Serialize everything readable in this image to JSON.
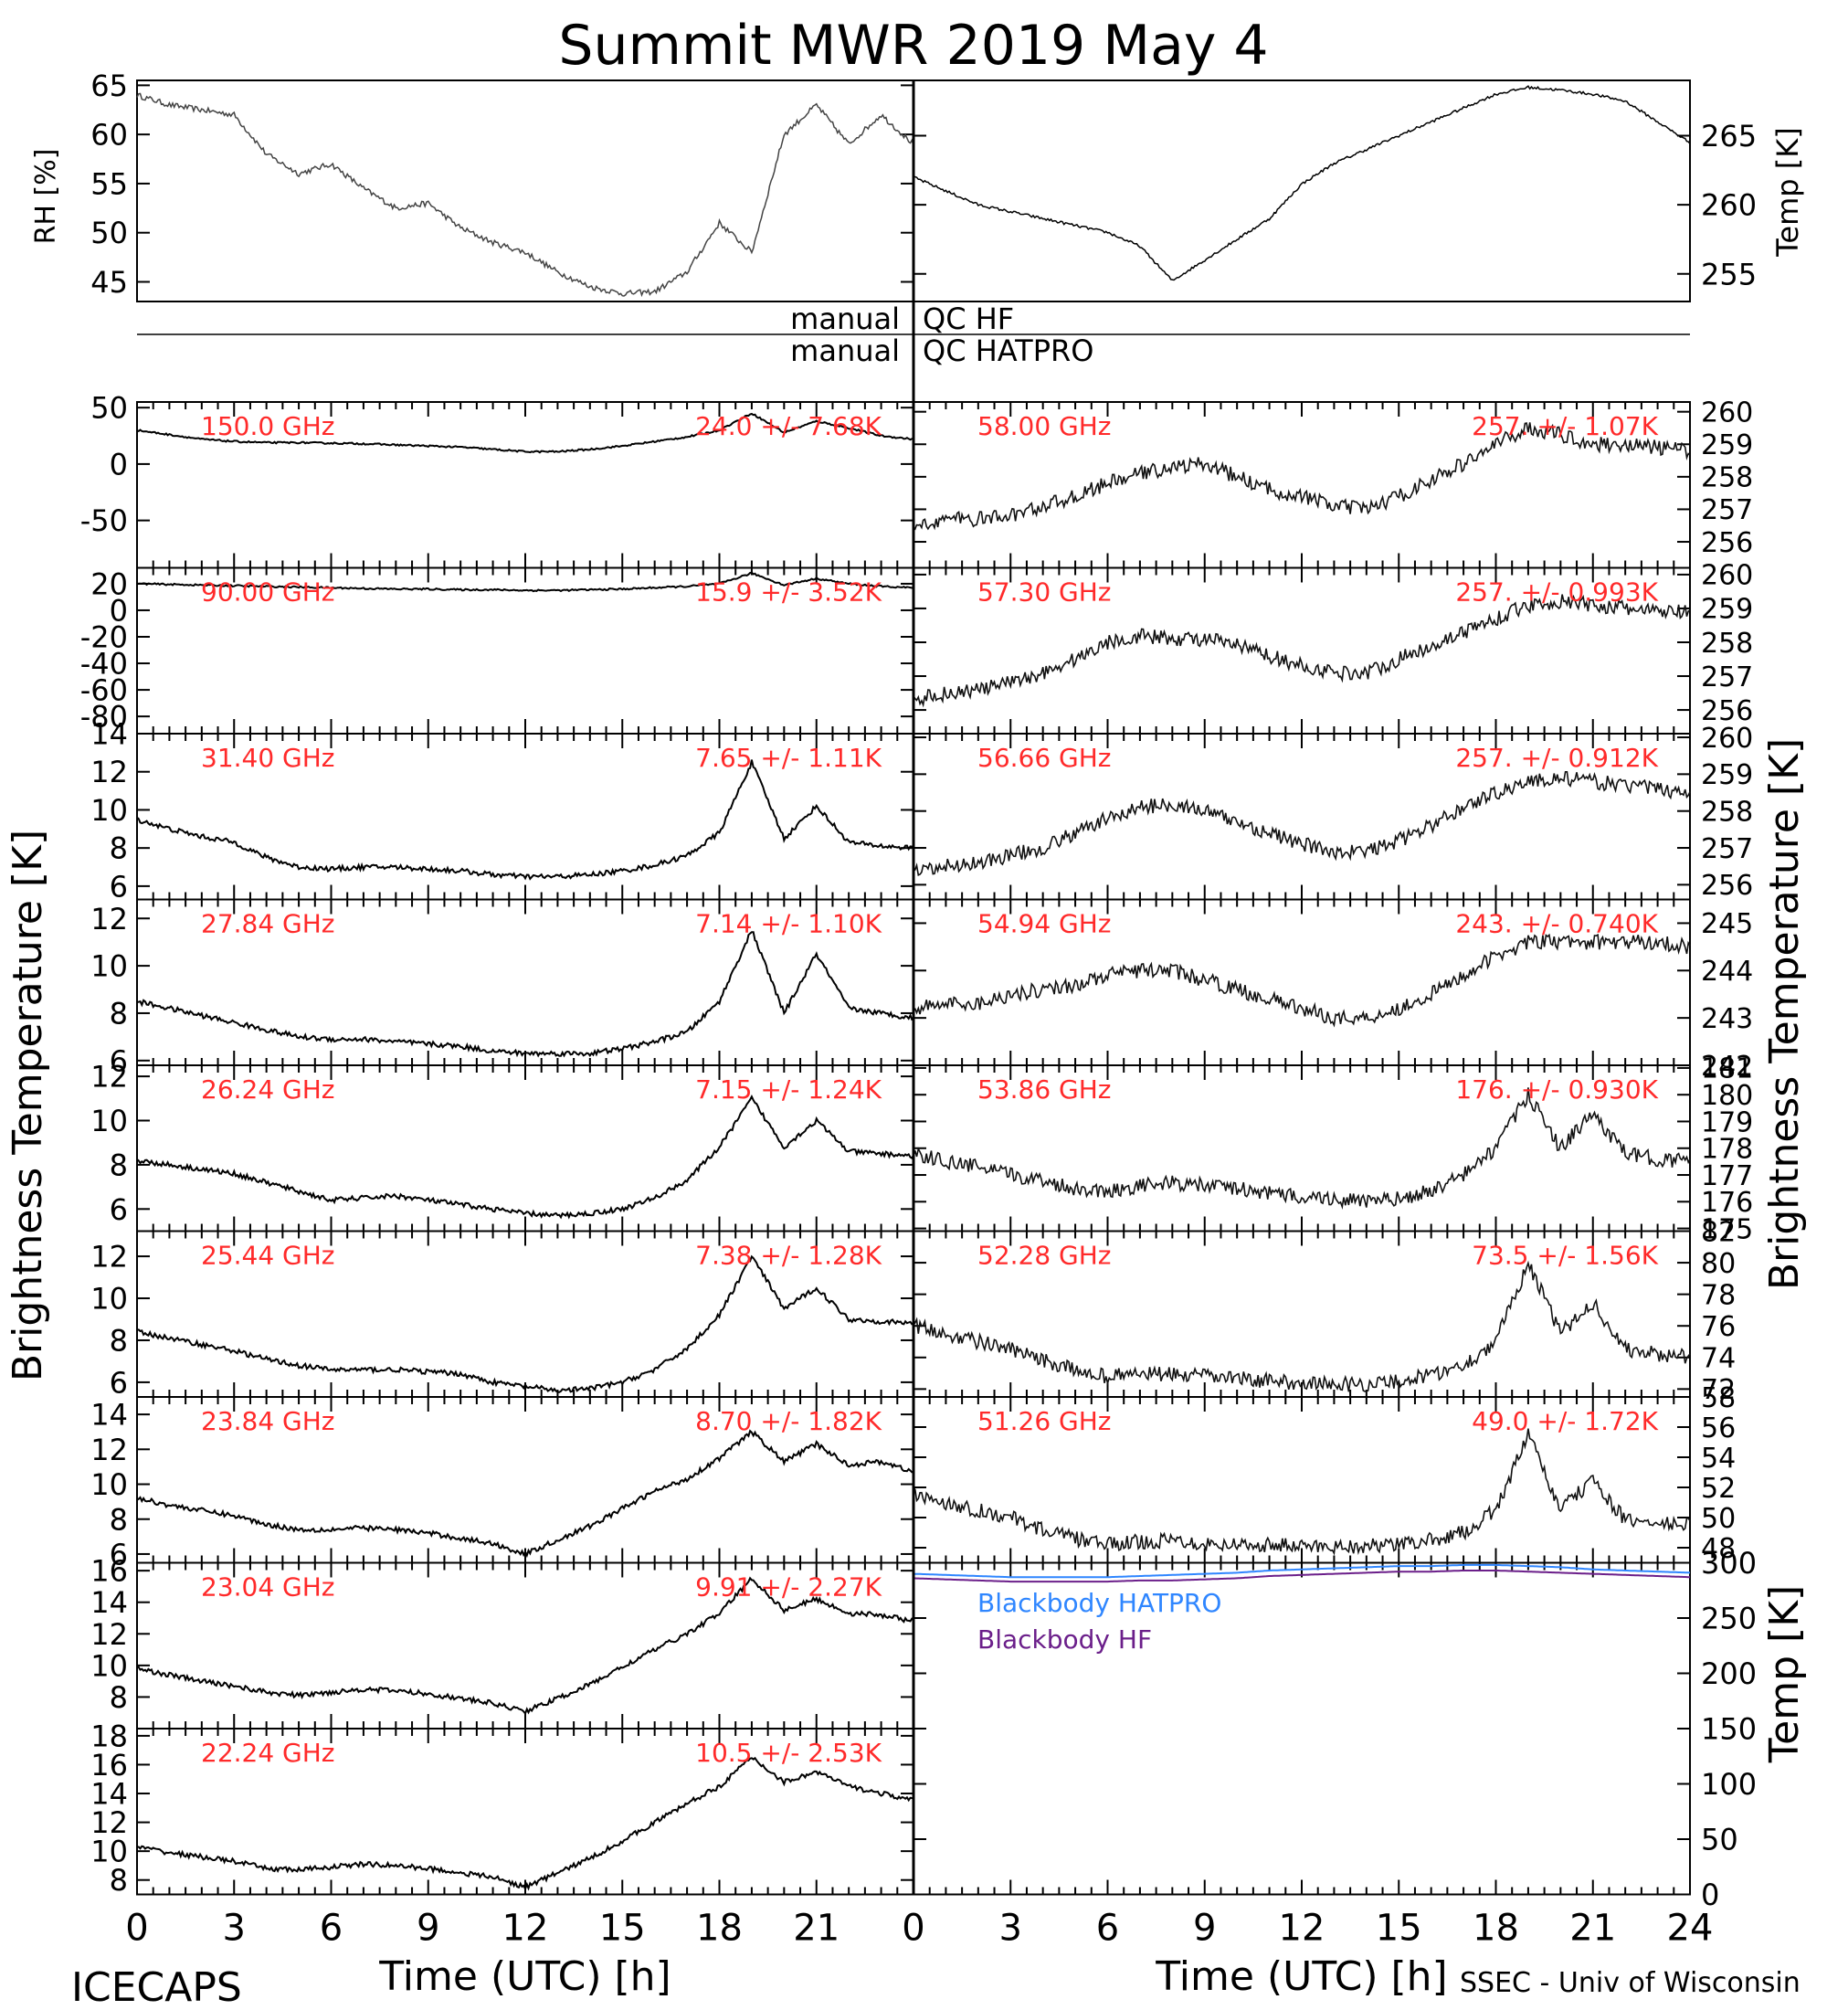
{
  "title": "Summit MWR 2019 May  4",
  "footer": {
    "left": "ICECAPS",
    "right": "SSEC - Univ of Wisconsin"
  },
  "qc": {
    "hf": "QC HF",
    "hatpro": "QC HATPRO",
    "manual": "manual"
  },
  "axis_labels": {
    "x": "Time (UTC) [h]",
    "y_left": "Brightness Temperature [K]",
    "y_right": "Brightness Temperature [K]",
    "rh": "RH [%]",
    "temp_top": "Temp [K]",
    "temp_bb": "Temp [K]"
  },
  "colors": {
    "stat_text": "#ff2a2a",
    "hatpro": "#2f86ff",
    "hf": "#6b1f8a",
    "data": "#000000"
  },
  "chart_data": {
    "type": "line",
    "x_range": [
      0,
      24
    ],
    "x_ticks": [
      0,
      3,
      6,
      9,
      12,
      15,
      18,
      21,
      24
    ],
    "met": {
      "x": [
        0,
        1,
        2,
        3,
        4,
        5,
        6,
        7,
        8,
        9,
        10,
        11,
        12,
        13,
        14,
        15,
        16,
        17,
        18,
        19,
        20,
        21,
        22,
        23,
        24
      ],
      "rh": {
        "ylim": [
          43,
          65.5
        ],
        "ticks": [
          45,
          50,
          55,
          60,
          65
        ],
        "values": [
          64,
          63,
          62.5,
          62,
          58,
          56,
          57,
          54.5,
          52.5,
          53,
          50.5,
          49,
          48,
          46,
          44.5,
          43.8,
          44,
          46,
          51,
          48,
          60,
          63,
          59,
          62,
          59
        ]
      },
      "temp": {
        "ylim": [
          253,
          269
        ],
        "ticks": [
          255,
          260,
          265
        ],
        "values": [
          262,
          261,
          260,
          259.5,
          259,
          258.5,
          258,
          257,
          254.5,
          256,
          257.5,
          259,
          261.5,
          263,
          264,
          265,
          266,
          267,
          268,
          268.5,
          268.3,
          268,
          267.5,
          266,
          264.5
        ]
      }
    },
    "left_panels": [
      {
        "freq": "150.0 GHz",
        "stat": "24.0 +/- 7.68K",
        "ylim": [
          -92,
          55
        ],
        "ticks": [
          50,
          0,
          -50
        ],
        "values": [
          30,
          26,
          22,
          20,
          19,
          19,
          18.5,
          18,
          17,
          16,
          15,
          13,
          11,
          11,
          13,
          16,
          20,
          24,
          30,
          45,
          28,
          38,
          32,
          25,
          22
        ]
      },
      {
        "freq": "90.00 GHz",
        "stat": "15.9 +/- 3.52K",
        "ylim": [
          -93,
          32
        ],
        "ticks": [
          20,
          0,
          -20,
          -40,
          -60,
          -80
        ],
        "values": [
          20,
          19.5,
          19,
          18.5,
          18,
          17.5,
          17,
          16.5,
          16,
          16,
          15.5,
          15.5,
          15,
          15,
          15.5,
          16,
          17,
          18,
          20,
          28,
          19,
          24,
          20,
          18,
          17
        ]
      },
      {
        "freq": "31.40 GHz",
        "stat": "7.65 +/- 1.11K",
        "ylim": [
          5.3,
          14
        ],
        "ticks": [
          6,
          8,
          10,
          12,
          14
        ],
        "values": [
          9.5,
          9,
          8.6,
          8.3,
          7.5,
          7.0,
          6.9,
          7.0,
          7.0,
          6.9,
          6.8,
          6.6,
          6.5,
          6.5,
          6.6,
          6.8,
          7.1,
          7.6,
          8.8,
          12.5,
          8.5,
          10.2,
          8.3,
          8.1,
          8.0
        ]
      },
      {
        "freq": "27.84 GHz",
        "stat": "7.14 +/- 1.10K",
        "ylim": [
          5.8,
          12.8
        ],
        "ticks": [
          6,
          8,
          10,
          12
        ],
        "values": [
          8.5,
          8.2,
          7.9,
          7.6,
          7.3,
          7.0,
          6.9,
          6.9,
          6.8,
          6.7,
          6.6,
          6.4,
          6.3,
          6.3,
          6.3,
          6.5,
          6.8,
          7.2,
          8.5,
          11.5,
          8.0,
          10.5,
          8.2,
          8.0,
          7.8
        ]
      },
      {
        "freq": "26.24 GHz",
        "stat": "7.15 +/- 1.24K",
        "ylim": [
          5,
          12.5
        ],
        "ticks": [
          6,
          8,
          10,
          12
        ],
        "values": [
          8.2,
          8.0,
          7.8,
          7.6,
          7.2,
          6.8,
          6.4,
          6.5,
          6.6,
          6.4,
          6.2,
          6.0,
          5.8,
          5.7,
          5.8,
          6.0,
          6.5,
          7.3,
          8.8,
          11,
          8.8,
          10,
          8.6,
          8.5,
          8.4
        ]
      },
      {
        "freq": "25.44 GHz",
        "stat": "7.38 +/- 1.28K",
        "ylim": [
          5.3,
          13.2
        ],
        "ticks": [
          6,
          8,
          10,
          12
        ],
        "values": [
          8.4,
          8.1,
          7.8,
          7.5,
          7.1,
          6.8,
          6.6,
          6.6,
          6.6,
          6.5,
          6.4,
          6.0,
          5.8,
          5.6,
          5.7,
          6.0,
          6.6,
          7.6,
          9.2,
          12,
          9.5,
          10.5,
          9.0,
          8.9,
          8.8
        ]
      },
      {
        "freq": "23.84 GHz",
        "stat": "8.70 +/- 1.82K",
        "ylim": [
          5.5,
          15
        ],
        "ticks": [
          6,
          8,
          10,
          12,
          14
        ],
        "values": [
          9.2,
          8.8,
          8.5,
          8.2,
          7.7,
          7.4,
          7.4,
          7.5,
          7.4,
          7.2,
          6.9,
          6.6,
          6.0,
          6.8,
          7.6,
          8.6,
          9.6,
          10.3,
          11.5,
          13,
          11.3,
          12.3,
          11.1,
          11.3,
          10.7
        ]
      },
      {
        "freq": "23.04 GHz",
        "stat": "9.91 +/- 2.27K",
        "ylim": [
          6,
          16.5
        ],
        "ticks": [
          8,
          10,
          12,
          14,
          16
        ],
        "values": [
          9.8,
          9.4,
          9.0,
          8.7,
          8.3,
          8.1,
          8.3,
          8.5,
          8.4,
          8.2,
          7.9,
          7.6,
          7.1,
          7.9,
          8.8,
          9.9,
          11.0,
          12.0,
          13.3,
          15.5,
          13.5,
          14.2,
          13.3,
          13.2,
          12.8
        ]
      },
      {
        "freq": "22.24 GHz",
        "stat": "10.5 +/- 2.53K",
        "ylim": [
          7,
          18.5
        ],
        "ticks": [
          8,
          10,
          12,
          14,
          16,
          18
        ],
        "values": [
          10.3,
          9.9,
          9.6,
          9.3,
          8.8,
          8.7,
          8.9,
          9.1,
          9.0,
          8.8,
          8.5,
          8.2,
          7.5,
          8.5,
          9.5,
          10.7,
          12.0,
          13.3,
          14.5,
          16.5,
          14.8,
          15.5,
          14.5,
          14.0,
          13.5
        ]
      }
    ],
    "right_panels": [
      {
        "freq": "58.00 GHz",
        "stat": "257. +/- 1.07K",
        "ylim": [
          255.2,
          260.3
        ],
        "ticks": [
          256,
          257,
          258,
          259,
          260
        ],
        "values": [
          256.5,
          256.7,
          256.7,
          256.8,
          257.1,
          257.4,
          257.8,
          258.1,
          258.3,
          258.4,
          258,
          257.6,
          257.4,
          257.1,
          257.0,
          257.4,
          257.9,
          258.4,
          259.0,
          259.5,
          259.3,
          259.0,
          259.0,
          258.9,
          258.8
        ]
      },
      {
        "freq": "57.30 GHz",
        "stat": "257. +/- 0.993K",
        "ylim": [
          255.3,
          260.2
        ],
        "ticks": [
          256,
          257,
          258,
          259,
          260
        ],
        "values": [
          256.3,
          256.5,
          256.6,
          256.8,
          257.1,
          257.5,
          258.0,
          258.2,
          258.1,
          258.1,
          257.9,
          257.6,
          257.3,
          257.1,
          257.1,
          257.5,
          257.9,
          258.3,
          258.7,
          259.1,
          259.2,
          259.1,
          259.0,
          258.9,
          258.9
        ]
      },
      {
        "freq": "56.66 GHz",
        "stat": "257. +/- 0.912K",
        "ylim": [
          255.6,
          260.1
        ],
        "ticks": [
          256,
          257,
          258,
          259,
          260
        ],
        "values": [
          256.3,
          256.5,
          256.6,
          256.8,
          257.0,
          257.4,
          257.8,
          258.1,
          258.2,
          258.0,
          257.7,
          257.4,
          257.1,
          256.9,
          256.9,
          257.2,
          257.6,
          258.1,
          258.5,
          258.8,
          258.9,
          258.8,
          258.7,
          258.6,
          258.5
        ]
      },
      {
        "freq": "54.94 GHz",
        "stat": "243. +/- 0.740K",
        "ylim": [
          242,
          245.5
        ],
        "ticks": [
          242,
          243,
          244,
          245
        ],
        "values": [
          243.2,
          243.3,
          243.3,
          243.5,
          243.6,
          243.7,
          243.9,
          244.0,
          244.0,
          243.8,
          243.6,
          243.4,
          243.2,
          243.0,
          243.0,
          243.2,
          243.5,
          243.9,
          244.3,
          244.6,
          244.6,
          244.6,
          244.6,
          244.6,
          244.5
        ]
      },
      {
        "freq": "53.86 GHz",
        "stat": "176. +/- 0.930K",
        "ylim": [
          174.9,
          181.1
        ],
        "ticks": [
          175,
          176,
          177,
          178,
          179,
          180,
          181
        ],
        "values": [
          177.8,
          177.5,
          177.3,
          177.0,
          176.8,
          176.5,
          176.4,
          176.6,
          176.7,
          176.6,
          176.5,
          176.3,
          176.2,
          176.1,
          176.0,
          176.1,
          176.4,
          177.0,
          178.0,
          180.0,
          178.0,
          179.3,
          177.8,
          177.6,
          177.5
        ]
      },
      {
        "freq": "52.28 GHz",
        "stat": "73.5 +/- 1.56K",
        "ylim": [
          71.5,
          82
        ],
        "ticks": [
          72,
          74,
          76,
          78,
          80,
          82
        ],
        "values": [
          76,
          75.5,
          75.0,
          74.5,
          73.8,
          73.2,
          72.8,
          73.0,
          72.9,
          72.8,
          72.7,
          72.5,
          72.4,
          72.3,
          72.3,
          72.5,
          72.9,
          73.5,
          75,
          80,
          75.5,
          77.5,
          74.5,
          74.2,
          74.0
        ]
      },
      {
        "freq": "51.26 GHz",
        "stat": "49.0 +/- 1.72K",
        "ylim": [
          47,
          58
        ],
        "ticks": [
          48,
          50,
          52,
          54,
          56,
          58
        ],
        "values": [
          51.5,
          51.0,
          50.5,
          50.0,
          49.2,
          48.6,
          48.2,
          48.4,
          48.5,
          48.3,
          48.2,
          48.2,
          48.1,
          48.1,
          48.1,
          48.2,
          48.5,
          49.0,
          50.5,
          55.5,
          50.5,
          52.5,
          49.8,
          49.6,
          49.5
        ]
      }
    ],
    "blackbody": {
      "ylim": [
        0,
        300
      ],
      "ticks": [
        0,
        50,
        100,
        150,
        200,
        250,
        300
      ],
      "series": [
        {
          "name": "Blackbody HATPRO",
          "values": [
            290,
            289,
            288,
            287,
            287,
            287,
            287,
            288,
            289,
            290,
            291,
            293,
            294,
            295,
            296,
            297,
            297,
            298,
            298,
            297,
            296,
            294,
            293,
            292,
            291
          ]
        },
        {
          "name": "Blackbody HF",
          "values": [
            286,
            285,
            284,
            283,
            283,
            283,
            283,
            284,
            284,
            285,
            286,
            288,
            289,
            290,
            291,
            292,
            292,
            293,
            293,
            292,
            291,
            290,
            289,
            288,
            287
          ]
        }
      ]
    }
  }
}
